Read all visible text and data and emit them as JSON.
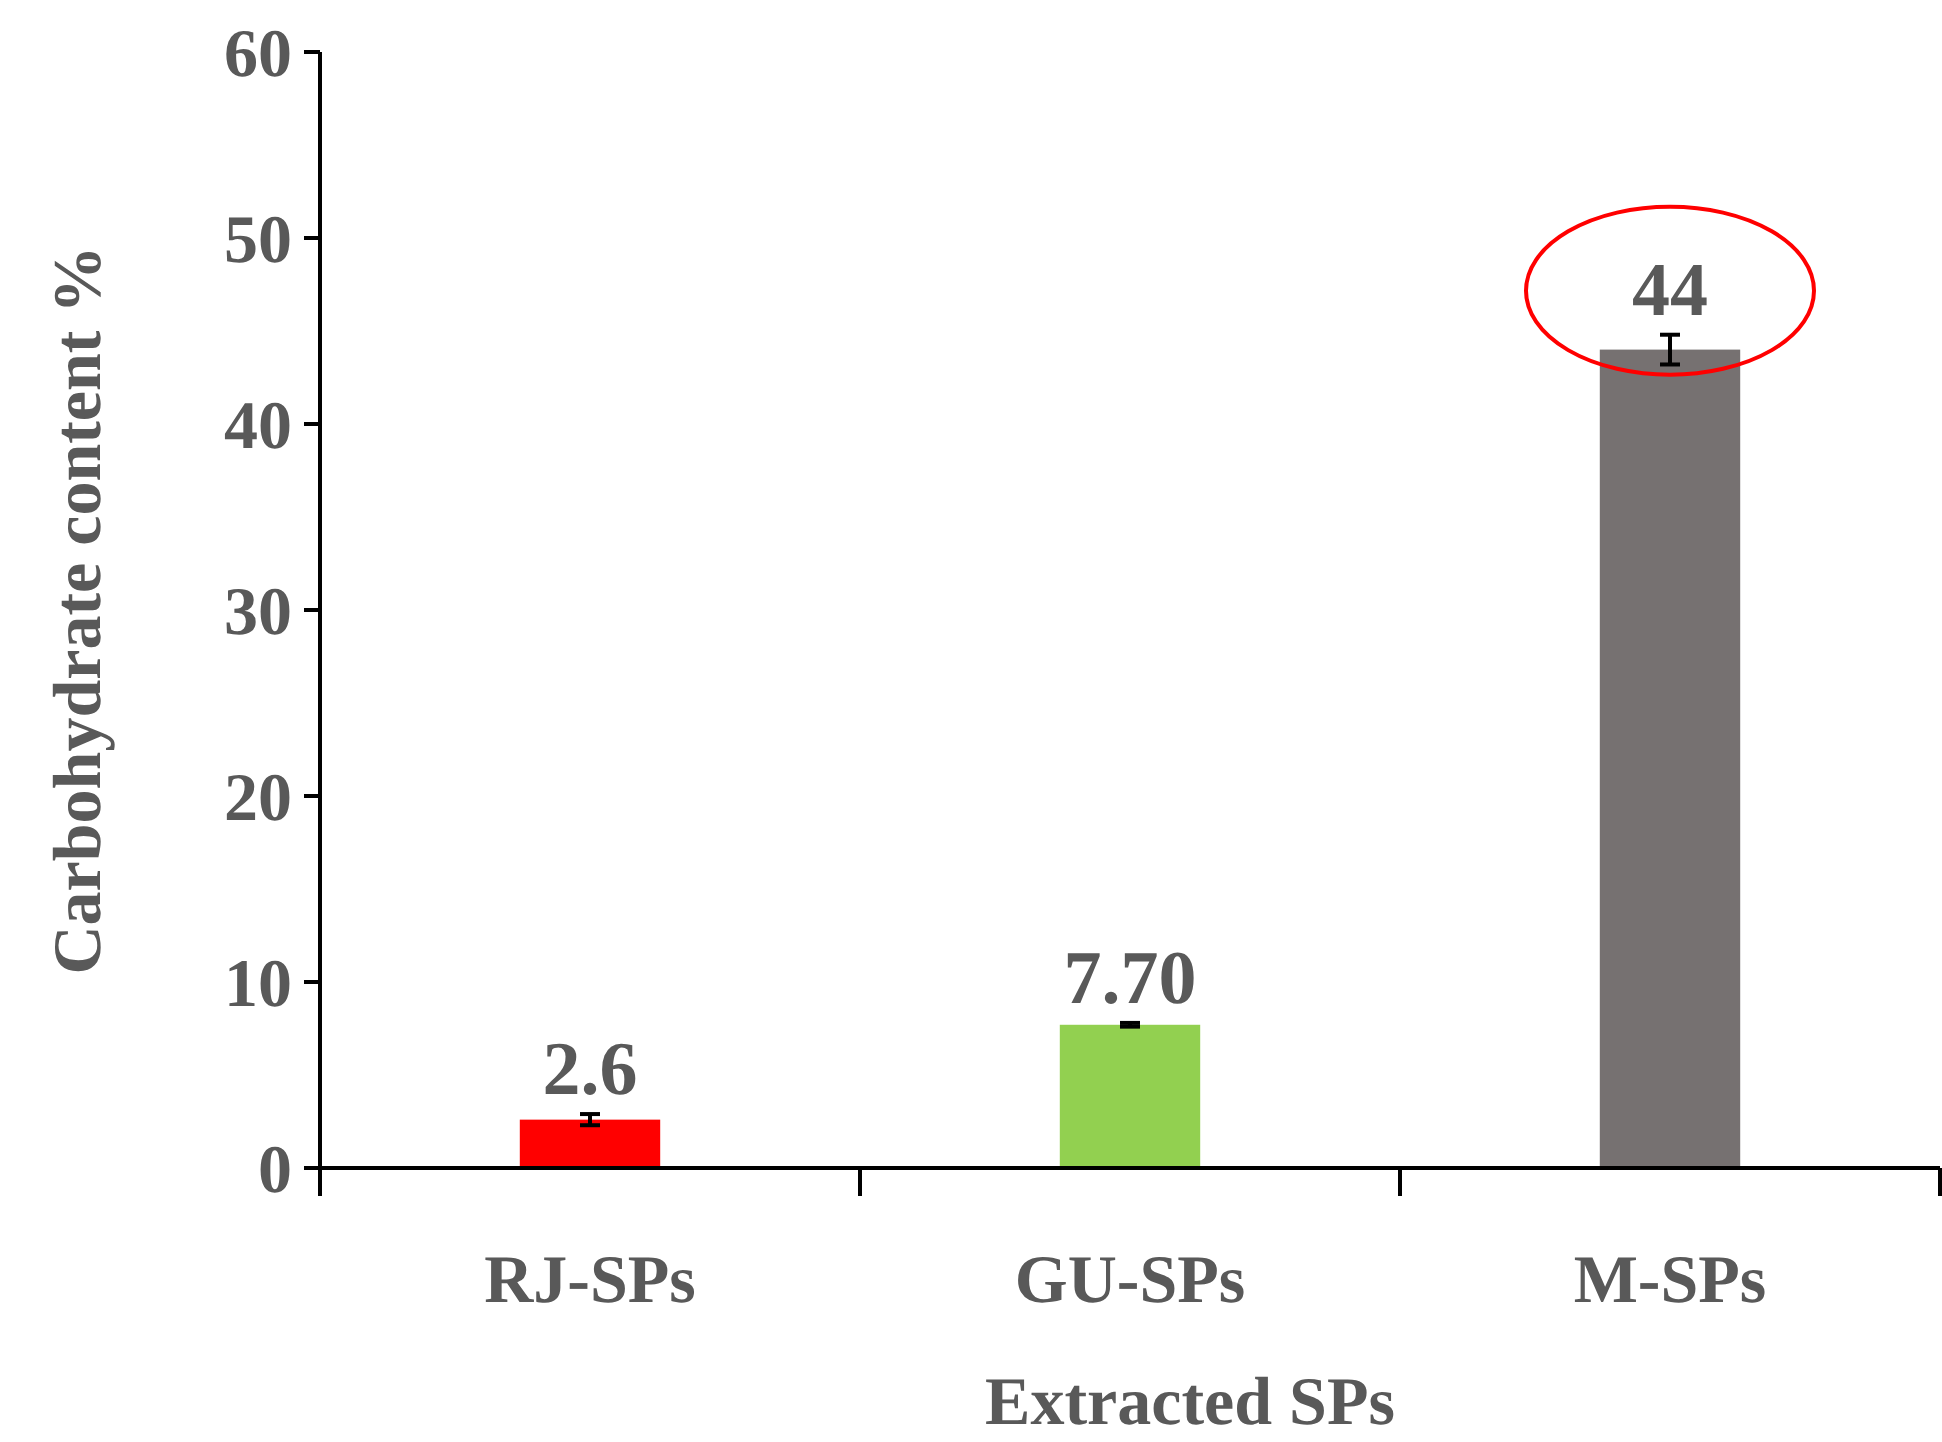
{
  "chart_data": {
    "type": "bar",
    "xlabel": "Extracted SPs",
    "ylabel": "Carbohydrate content %",
    "categories": [
      "RJ-SPs",
      "GU-SPs",
      "M-SPs"
    ],
    "values": [
      2.6,
      7.7,
      44
    ],
    "colors": [
      "#ff0000",
      "#92d050",
      "#767171"
    ],
    "errors": [
      0.3,
      0.1,
      0.8
    ],
    "value_labels": [
      "2.6",
      "7.70",
      "44"
    ],
    "ylim": [
      0,
      60
    ],
    "yticks": [
      0,
      10,
      20,
      30,
      40,
      50,
      60
    ],
    "grid": false
  }
}
